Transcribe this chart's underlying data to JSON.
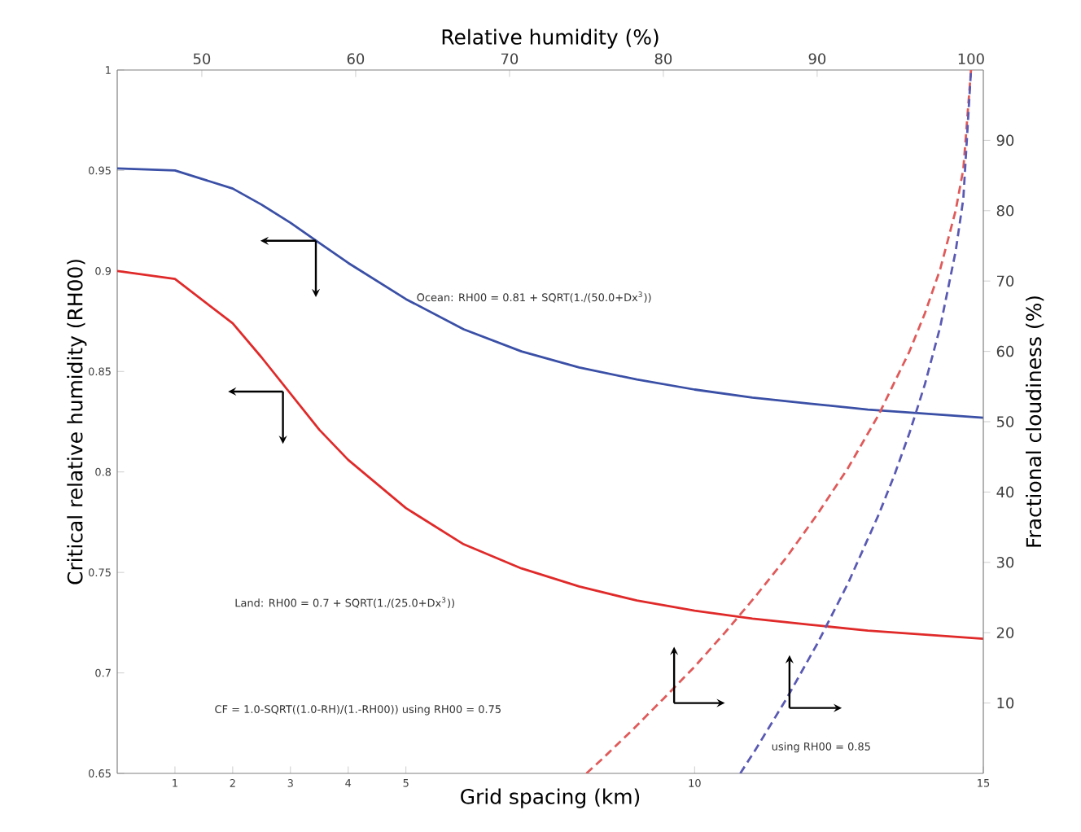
{
  "chart_data": [
    {
      "type": "line",
      "xlabel": "Grid spacing (km)",
      "ylabel": "Critical relative humidity (RH00)",
      "xlim": [
        0,
        15
      ],
      "xticks": [
        1,
        2,
        3,
        4,
        5,
        10,
        15
      ],
      "ylim": [
        0.65,
        1
      ],
      "yticks": [
        0.65,
        0.7,
        0.75,
        0.8,
        0.85,
        0.9,
        0.95,
        1
      ],
      "series": [
        {
          "color": "#3a4fa6",
          "line_style": "solid",
          "x": [
            0,
            1,
            2,
            2.5,
            3,
            3.5,
            4,
            5,
            6,
            7,
            8,
            9,
            10,
            11,
            12,
            13,
            14,
            15
          ],
          "values": [
            0.951,
            0.95,
            0.941,
            0.933,
            0.924,
            0.914,
            0.904,
            0.886,
            0.871,
            0.86,
            0.852,
            0.846,
            0.841,
            0.837,
            0.834,
            0.831,
            0.829,
            0.827
          ]
        },
        {
          "color": "#e02a2a",
          "line_style": "solid",
          "x": [
            0,
            1,
            2,
            2.5,
            3,
            3.5,
            4,
            5,
            6,
            7,
            8,
            9,
            10,
            11,
            12,
            13,
            14,
            15
          ],
          "values": [
            0.9,
            0.896,
            0.874,
            0.857,
            0.839,
            0.821,
            0.806,
            0.782,
            0.764,
            0.752,
            0.743,
            0.736,
            0.731,
            0.727,
            0.724,
            0.721,
            0.719,
            0.717
          ]
        }
      ],
      "annotations": [
        "Ocean: RH00 = 0.81 + SQRT(1./(50.0+Dx$^{3}$))",
        "Land: RH00 = 0.7 + SQRT(1./(25.0+Dx$^{3}$))"
      ]
    },
    {
      "type": "line",
      "xlabel": "Relative humidity (%)",
      "ylabel": "Fractional cloudiness (%)",
      "xlim": [
        44.5,
        100.8
      ],
      "xticks": [
        50,
        60,
        70,
        80,
        90,
        100
      ],
      "ylim": [
        0,
        100
      ],
      "yticks": [
        10,
        20,
        30,
        40,
        50,
        60,
        70,
        80,
        90
      ],
      "series": [
        {
          "color": "#e05a5a",
          "line_style": "dashed",
          "x": [
            75,
            76,
            78,
            80,
            82,
            84,
            86,
            88,
            90,
            92,
            94,
            96,
            97,
            98,
            99,
            99.5,
            100
          ],
          "values": [
            0,
            2.0,
            6.2,
            10.6,
            15.1,
            20.0,
            25.2,
            30.7,
            36.8,
            43.4,
            51.0,
            60.0,
            65.4,
            71.7,
            80.0,
            85.9,
            100
          ]
        },
        {
          "color": "#5a5ab4",
          "line_style": "dashed",
          "x": [
            85,
            86,
            88,
            90,
            92,
            94,
            95,
            96,
            97,
            98,
            99,
            99.5,
            100
          ],
          "values": [
            0,
            3.4,
            10.6,
            18.4,
            27.0,
            36.8,
            42.3,
            48.4,
            55.3,
            63.5,
            74.2,
            81.7,
            100
          ]
        }
      ],
      "annotations": [
        "CF = 1.0-SQRT((1.0-RH)/(1.-RH00)) using RH00 = 0.75",
        "using RH00 = 0.85"
      ]
    }
  ]
}
